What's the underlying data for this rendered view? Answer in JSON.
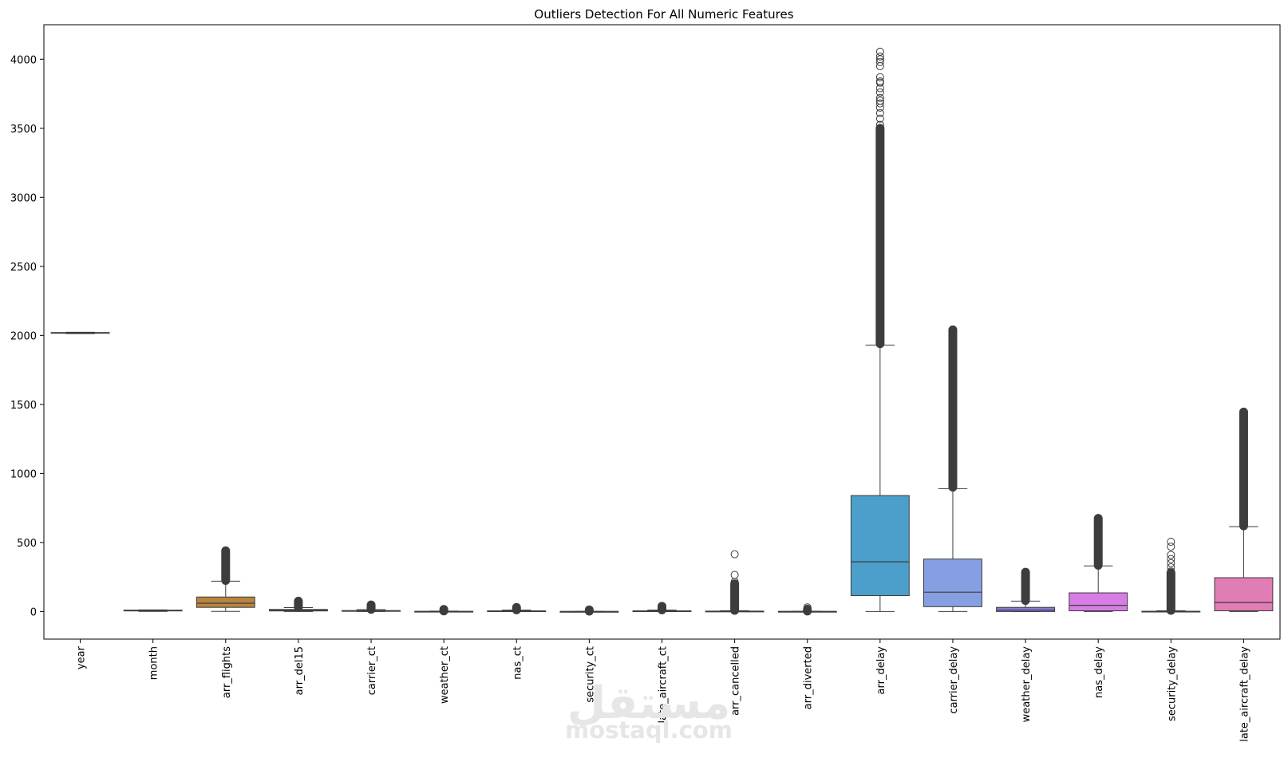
{
  "chart_data": {
    "type": "box",
    "title": "Outliers Detection For All Numeric Features",
    "xlabel": "",
    "ylabel": "",
    "ylim": [
      -200,
      4250
    ],
    "yticks": [
      0,
      500,
      1000,
      1500,
      2000,
      2500,
      3000,
      3500,
      4000
    ],
    "grid": false,
    "legend": "none",
    "categories": [
      "year",
      "month",
      "arr_flights",
      "arr_del15",
      "carrier_ct",
      "weather_ct",
      "nas_ct",
      "security_ct",
      "late_aircraft_ct",
      "arr_cancelled",
      "arr_diverted",
      "arr_delay",
      "carrier_delay",
      "weather_delay",
      "nas_delay",
      "security_delay",
      "late_aircraft_delay"
    ],
    "series": [
      {
        "category": "year",
        "color": "#3274a1",
        "min": 2013,
        "q1": 2016,
        "median": 2019,
        "q3": 2021,
        "max": 2023,
        "outliers": []
      },
      {
        "category": "month",
        "color": "#e1812c",
        "min": 1,
        "q1": 4,
        "median": 7,
        "q3": 10,
        "max": 12,
        "outliers": []
      },
      {
        "category": "arr_flights",
        "color": "#b9843f",
        "min": 1,
        "q1": 30,
        "median": 60,
        "q3": 105,
        "max": 220,
        "outliers": [
          230,
          260,
          290,
          320,
          350,
          380,
          410,
          435
        ],
        "outlier_band": [
          225,
          440
        ]
      },
      {
        "category": "arr_del15",
        "color": "#3a923a",
        "min": 0,
        "q1": 4,
        "median": 8,
        "q3": 15,
        "max": 28,
        "outliers": [
          35,
          45,
          55,
          65,
          75
        ],
        "outlier_band": [
          30,
          75
        ]
      },
      {
        "category": "carrier_ct",
        "color": "#c03d3e",
        "min": 0,
        "q1": 2,
        "median": 4,
        "q3": 7,
        "max": 14,
        "outliers": [
          18,
          25,
          32,
          40,
          48
        ],
        "outlier_band": [
          15,
          48
        ]
      },
      {
        "category": "weather_ct",
        "color": "#9372b2",
        "min": 0,
        "q1": 0,
        "median": 0.5,
        "q3": 1.5,
        "max": 3,
        "outliers": [
          5,
          8,
          11,
          14
        ],
        "outlier_band": [
          4,
          15
        ]
      },
      {
        "category": "nas_ct",
        "color": "#845b53",
        "min": 0,
        "q1": 1,
        "median": 2,
        "q3": 5,
        "max": 10,
        "outliers": [
          14,
          18,
          22,
          26,
          30
        ],
        "outlier_band": [
          12,
          30
        ]
      },
      {
        "category": "security_ct",
        "color": "#d684bd",
        "min": 0,
        "q1": 0,
        "median": 0,
        "q3": 0.5,
        "max": 1,
        "outliers": [
          3,
          6,
          9,
          12
        ],
        "outlier_band": [
          2,
          12
        ]
      },
      {
        "category": "late_aircraft_ct",
        "color": "#7f7f7f",
        "min": 0,
        "q1": 1,
        "median": 2,
        "q3": 5,
        "max": 10,
        "outliers": [
          14,
          20,
          26,
          32,
          38
        ],
        "outlier_band": [
          12,
          38
        ]
      },
      {
        "category": "arr_cancelled",
        "color": "#a9aa35",
        "min": 0,
        "q1": 0,
        "median": 1,
        "q3": 3,
        "max": 6,
        "outliers": [
          15,
          35,
          60,
          90,
          110,
          130,
          150,
          170,
          195,
          215,
          265,
          415
        ],
        "outlier_band": [
          8,
          200
        ]
      },
      {
        "category": "arr_diverted",
        "color": "#2ebcd0",
        "min": 0,
        "q1": 0,
        "median": 0,
        "q3": 1,
        "max": 2,
        "outliers": [
          5,
          12,
          20,
          30
        ],
        "outlier_band": [
          3,
          12
        ]
      },
      {
        "category": "arr_delay",
        "color": "#4c9fca",
        "min": 0,
        "q1": 115,
        "median": 360,
        "q3": 840,
        "max": 1930,
        "outliers": [
          3525,
          3570,
          3610,
          3650,
          3680,
          3700,
          3720,
          3760,
          3790,
          3830,
          3840,
          3870,
          3950,
          3980,
          4000,
          4020,
          4055
        ],
        "outlier_band": [
          1940,
          3500
        ]
      },
      {
        "category": "carrier_delay",
        "color": "#869fe3",
        "min": 0,
        "q1": 35,
        "median": 140,
        "q3": 380,
        "max": 890,
        "outliers": [
          2040
        ],
        "outlier_band": [
          900,
          2040
        ]
      },
      {
        "category": "weather_delay",
        "color": "#857adf",
        "min": 0,
        "q1": 0,
        "median": 10,
        "q3": 30,
        "max": 75,
        "outliers": [
          285
        ],
        "outlier_band": [
          80,
          285
        ]
      },
      {
        "category": "nas_delay",
        "color": "#d77de5",
        "min": 0,
        "q1": 5,
        "median": 45,
        "q3": 135,
        "max": 330,
        "outliers": [
          675
        ],
        "outlier_band": [
          335,
          675
        ]
      },
      {
        "category": "security_delay",
        "color": "#dc7ddf",
        "min": 0,
        "q1": 0,
        "median": 0,
        "q3": 2,
        "max": 5,
        "outliers": [
          290,
          320,
          350,
          380,
          410,
          470,
          505
        ],
        "outlier_band": [
          8,
          280
        ]
      },
      {
        "category": "late_aircraft_delay",
        "color": "#e07db4",
        "min": 0,
        "q1": 5,
        "median": 65,
        "q3": 245,
        "max": 615,
        "outliers": [
          1445
        ],
        "outlier_band": [
          620,
          1445
        ]
      }
    ]
  },
  "watermark": {
    "arabic": "مستقل",
    "latin": "mostaql.com"
  }
}
